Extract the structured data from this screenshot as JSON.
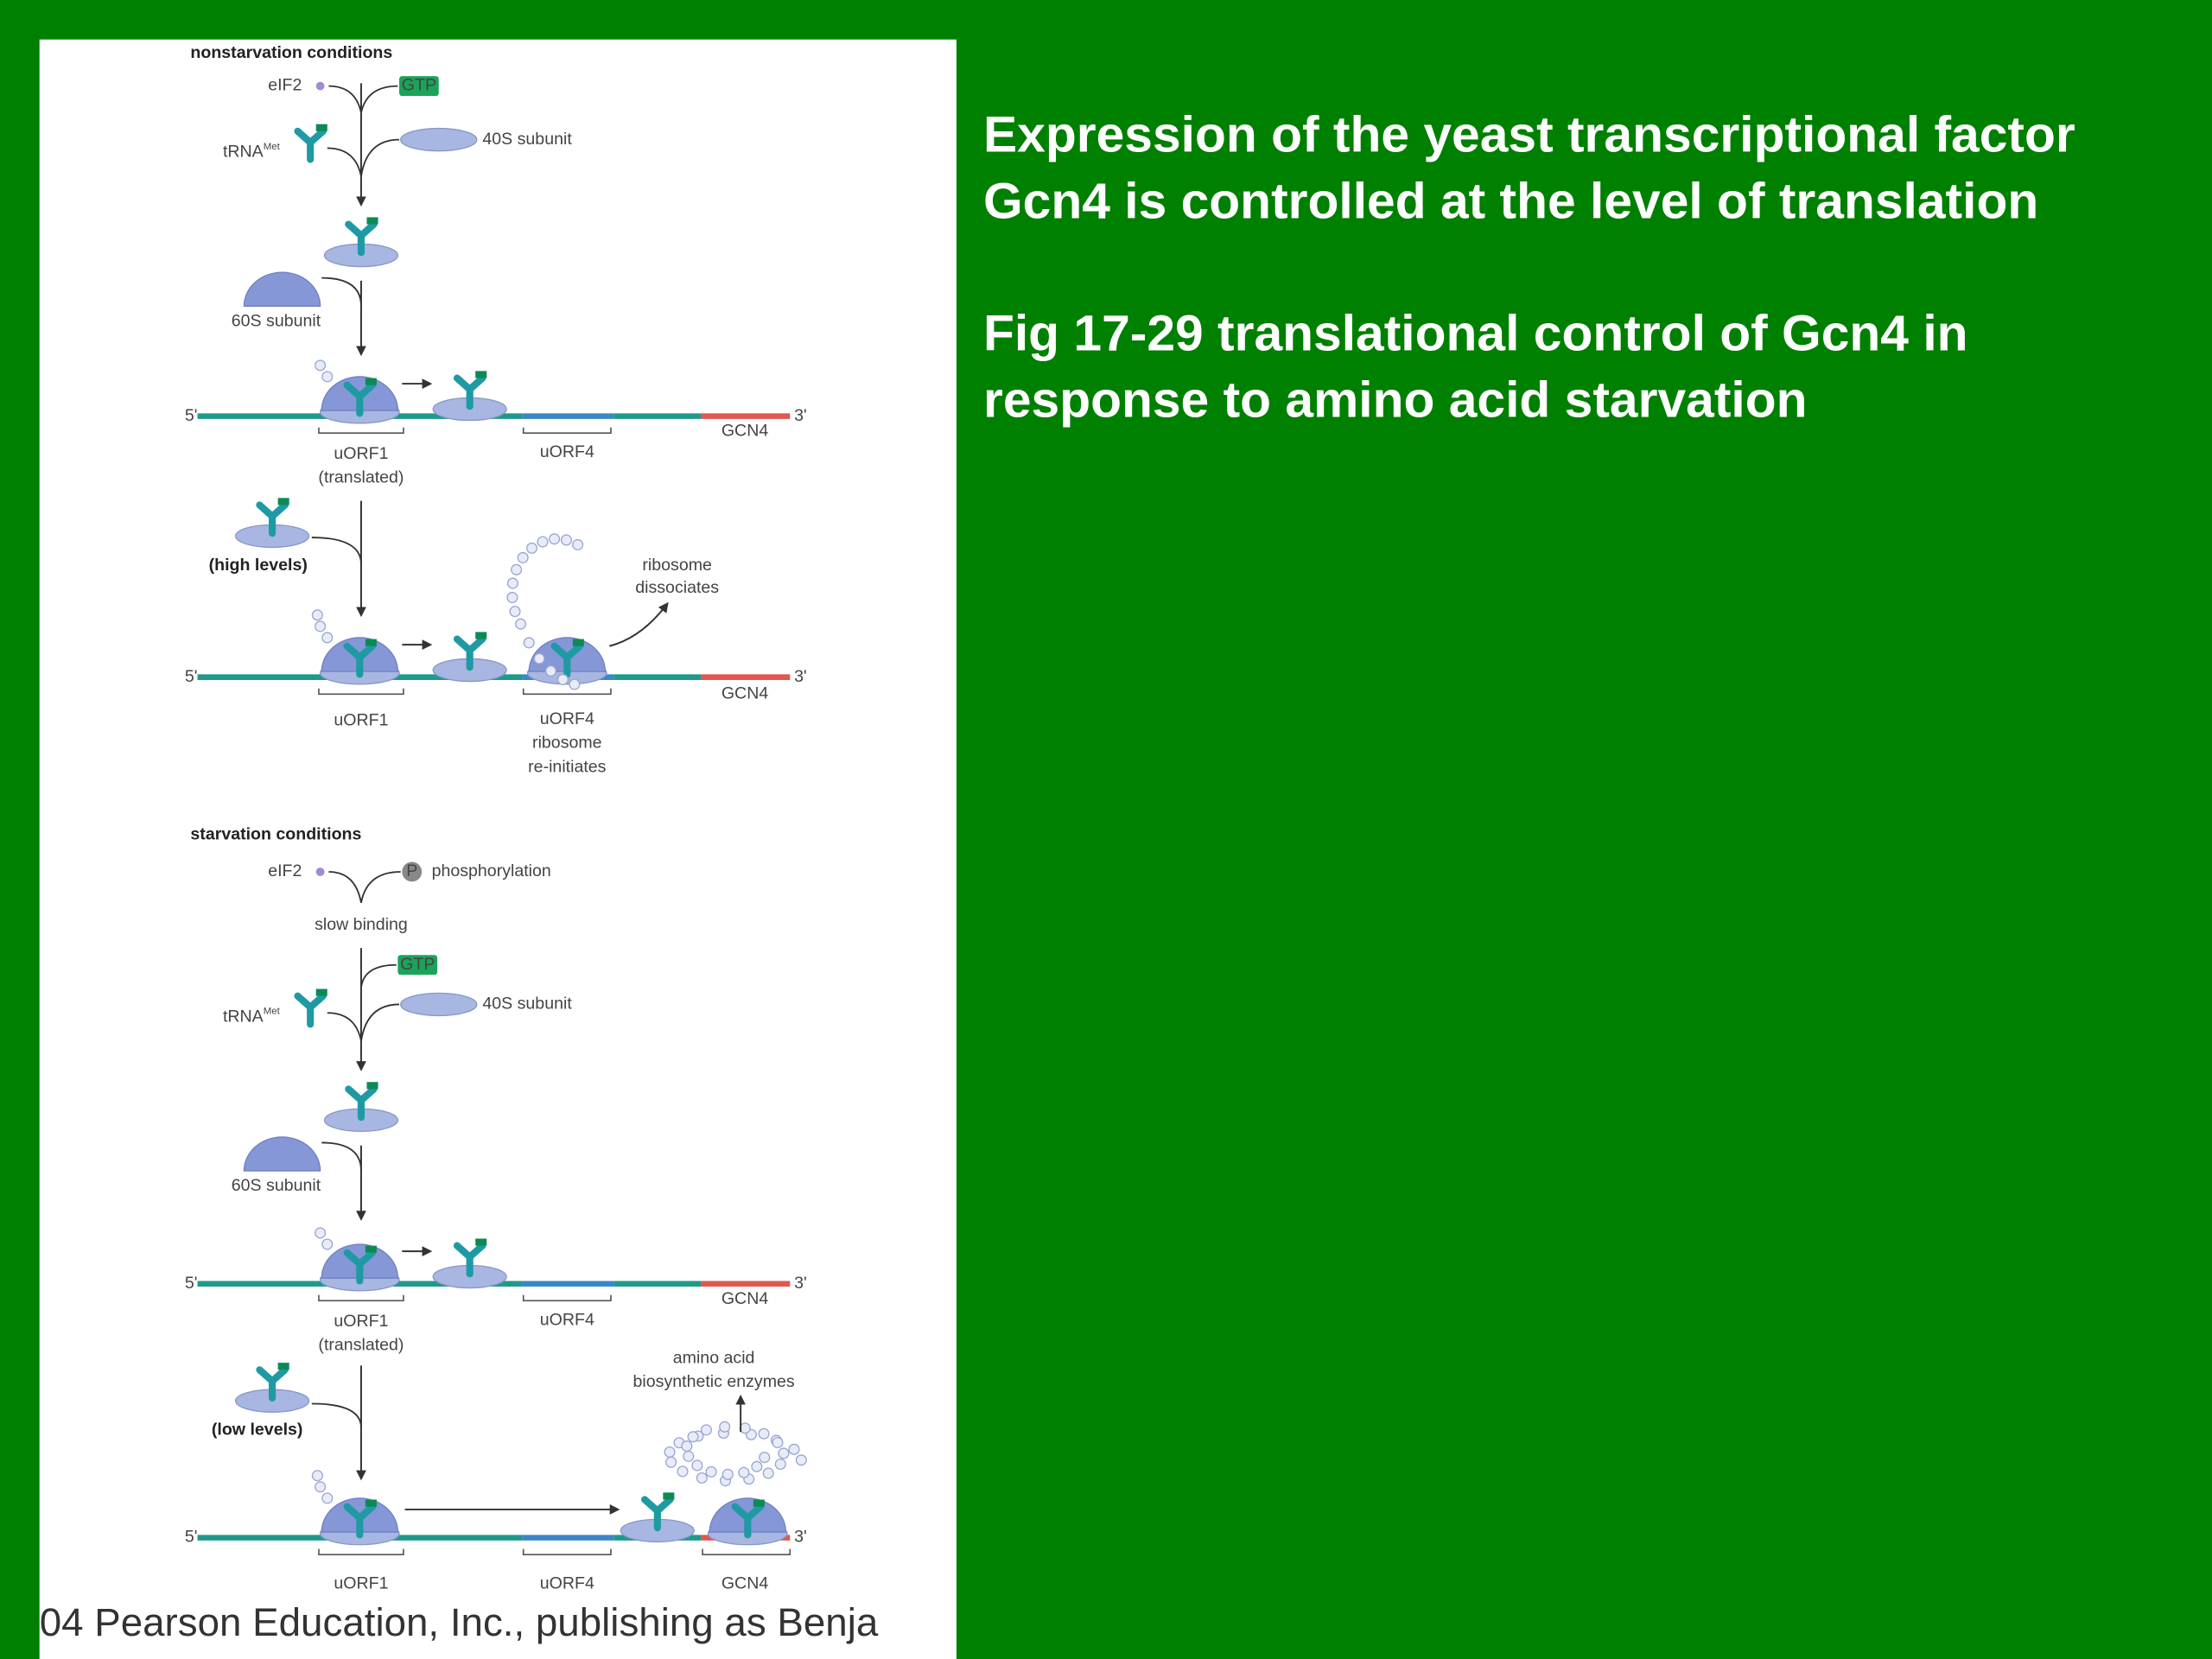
{
  "slide": {
    "title_lines": [
      "Expression of the yeast transcriptional factor",
      "Gcn4 is controlled at the level of translation"
    ],
    "caption_lines": [
      "Fig 17-29 translational control of Gcn4 in",
      "response to amino acid starvation"
    ],
    "footer": "04 Pearson Education, Inc., publishing as Benja"
  },
  "figure": {
    "nonstarvation": "nonstarvation conditions",
    "starvation": "starvation conditions",
    "eif2": "eIF2",
    "gtp": "GTP",
    "trna": "tRNA",
    "trna_sup": "Met",
    "subunit_40s": "40S subunit",
    "subunit_60s": "60S subunit",
    "five_prime": "5'",
    "three_prime": "3'",
    "uorf1": "uORF1",
    "translated": "(translated)",
    "uorf4": "uORF4",
    "gcn4": "GCN4",
    "high_levels": "(high levels)",
    "low_levels": "(low levels)",
    "dissociates": [
      "ribosome",
      "dissociates"
    ],
    "reinitiates": [
      "ribosome",
      "re-initiates"
    ],
    "phospho_p": "P",
    "phosphorylation": "phosphorylation",
    "slow_binding": "slow binding",
    "enzymes": [
      "amino acid",
      "biosynthetic enzymes"
    ]
  }
}
